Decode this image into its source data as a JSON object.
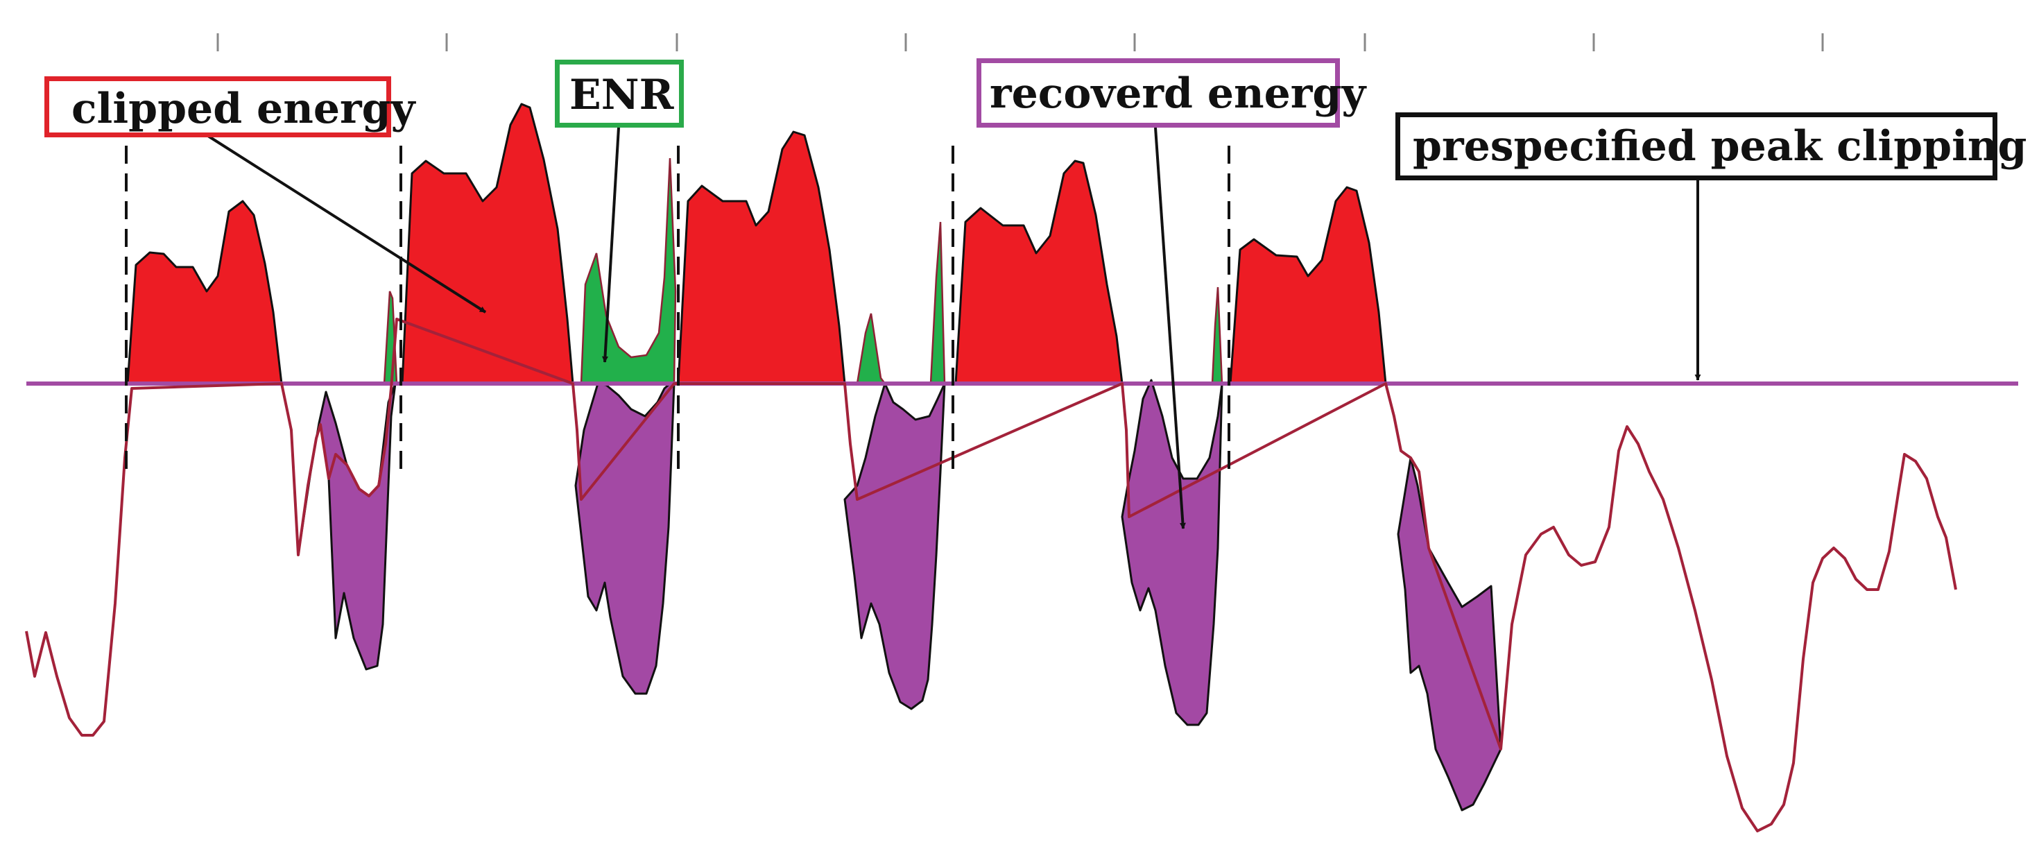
{
  "labels": {
    "clipped_energy": "clipped energy",
    "enr": "ENR",
    "recovered_energy": "recoverd energy",
    "peak_clipping": "prespecified peak clipping"
  },
  "colors": {
    "clipped": "#ed1c24",
    "enr": "#22b04b",
    "recovered": "#a349a4",
    "clip_line": "#a24ba3",
    "signal": "#a3223a",
    "arrow": "#111111"
  }
}
